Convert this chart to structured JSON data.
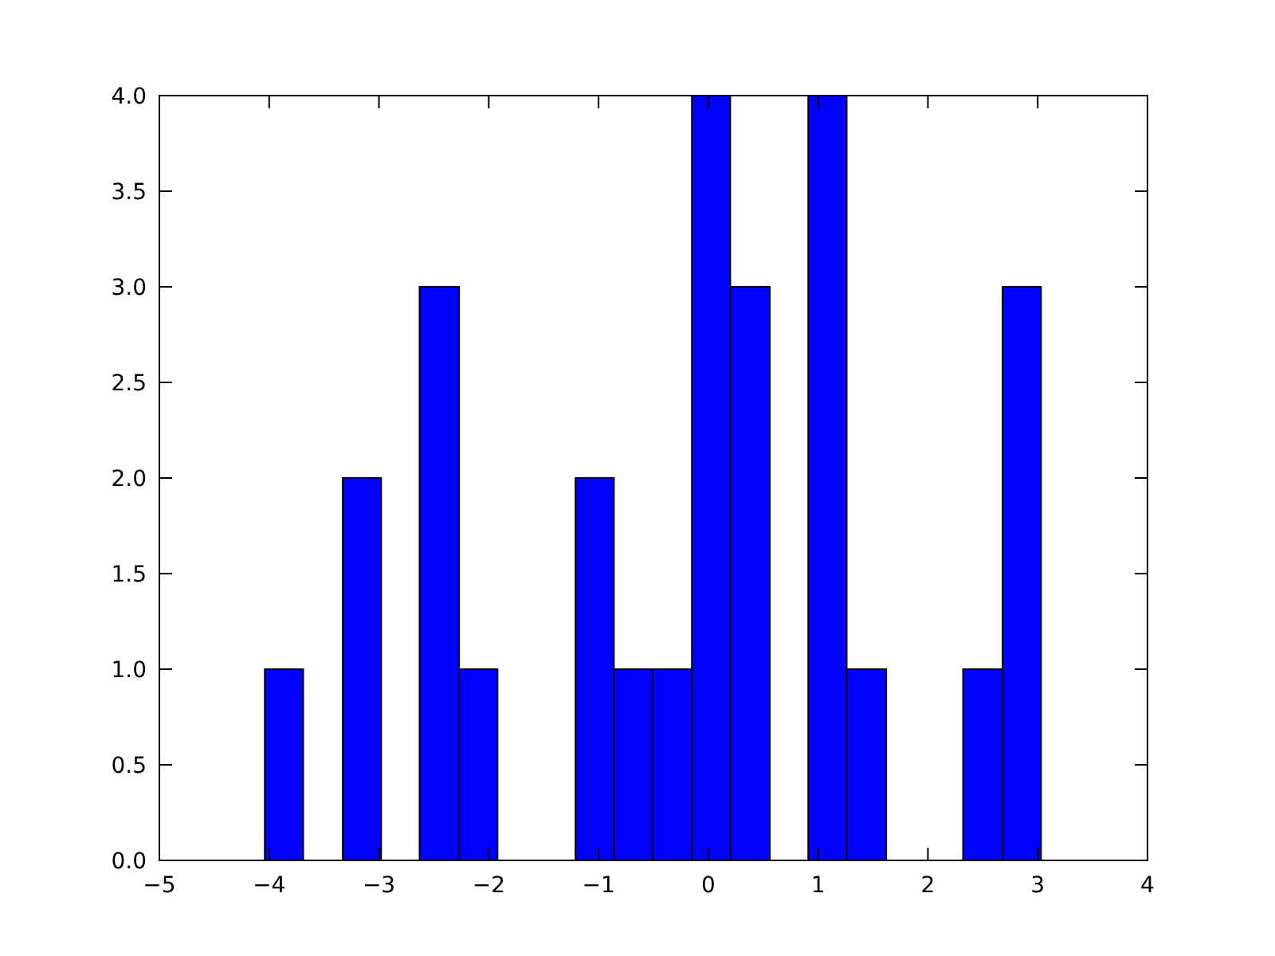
{
  "chart_data": {
    "type": "histogram",
    "color": "#0000ff",
    "bins": [
      -4.04,
      -3.69,
      -3.33,
      -2.98,
      -2.63,
      -2.27,
      -1.92,
      -1.21,
      -0.86,
      -0.51,
      -0.15,
      0.2,
      0.56,
      0.91,
      1.26,
      1.62,
      2.32,
      2.68,
      3.03
    ],
    "values": [
      1,
      0,
      2,
      0,
      3,
      1,
      0,
      2,
      1,
      1,
      4,
      3,
      0,
      4,
      1,
      0,
      1,
      3
    ],
    "xlim": [
      -5,
      4
    ],
    "xticks": [
      -5,
      -4,
      -3,
      -2,
      -1,
      0,
      1,
      2,
      3,
      4
    ],
    "ylim": [
      0,
      4
    ],
    "yticks": [
      {
        "value": 0,
        "label": "0.0"
      },
      {
        "value": 0.5,
        "label": "0.5"
      },
      {
        "value": 1,
        "label": "1.0"
      },
      {
        "value": 1.5,
        "label": "1.5"
      },
      {
        "value": 2,
        "label": "2.0"
      },
      {
        "value": 2.5,
        "label": "2.5"
      },
      {
        "value": 3,
        "label": "3.0"
      },
      {
        "value": 3.5,
        "label": "3.5"
      },
      {
        "value": 4,
        "label": "4.0"
      }
    ]
  }
}
